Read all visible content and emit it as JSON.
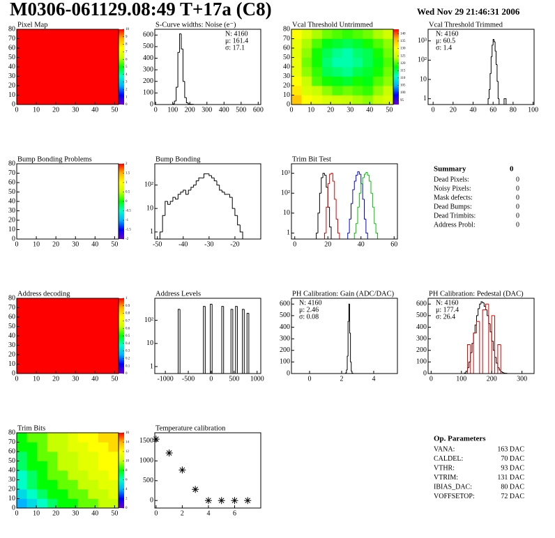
{
  "header": {
    "title": "M0306-061129.08:49 T+17a (C8)",
    "date": "Wed Nov 29 21:46:31 2006"
  },
  "chart_data": [
    {
      "type": "heatmap",
      "title": "Pixel Map",
      "xlim": [
        0,
        52
      ],
      "ylim": [
        0,
        80
      ],
      "xticks": [
        0,
        10,
        20,
        30,
        40,
        50
      ],
      "yticks": [
        0,
        10,
        20,
        30,
        40,
        50,
        60,
        70,
        80
      ],
      "zlim": [
        0,
        10
      ],
      "zticks": [
        0,
        1,
        2,
        3,
        4,
        5,
        6,
        7,
        8,
        9,
        10
      ],
      "colormap": [
        "#6b00c8",
        "#0000ff",
        "#00b4ff",
        "#00ffc8",
        "#00ff00",
        "#c8ff00",
        "#ffff00",
        "#ffb400",
        "#ff0000"
      ],
      "z": [
        [
          10,
          10
        ],
        [
          10,
          10
        ]
      ]
    },
    {
      "type": "hist",
      "title": "S-Curve widths: Noise (e⁻)",
      "xlim": [
        -5,
        615
      ],
      "ylim": [
        0,
        650
      ],
      "xticks": [
        0,
        100,
        200,
        300,
        400,
        500,
        600
      ],
      "yticks": [
        0,
        100,
        200,
        300,
        400,
        500,
        600
      ],
      "stats": [
        "N: 4160",
        "μ: 161.4",
        "σ: 17.1"
      ],
      "stats_corner": "right",
      "series": [
        {
          "color": "#000000",
          "bins": [
            100,
            110,
            120,
            130,
            140,
            150,
            160,
            170,
            180,
            190,
            200,
            210,
            220
          ],
          "values": [
            5,
            30,
            150,
            450,
            610,
            480,
            200,
            60,
            15,
            5,
            3,
            2
          ]
        }
      ]
    },
    {
      "type": "heatmap",
      "title": "Vcal Threshold Untrimmed",
      "xlim": [
        0,
        52
      ],
      "ylim": [
        0,
        80
      ],
      "xticks": [
        0,
        10,
        20,
        30,
        40,
        50
      ],
      "yticks": [
        0,
        10,
        20,
        30,
        40,
        50,
        60,
        70,
        80
      ],
      "zlim": [
        92,
        143
      ],
      "zticks": [
        95,
        100,
        105,
        110,
        115,
        120,
        125,
        130,
        135,
        140
      ],
      "colormap": [
        "#6b00c8",
        "#0000ff",
        "#00b4ff",
        "#00ffc8",
        "#00ff00",
        "#c8ff00",
        "#ffff00",
        "#ffb400",
        "#ff0000"
      ],
      "z": [
        [
          135,
          130,
          128,
          126,
          125,
          124,
          123,
          122,
          124,
          126
        ],
        [
          132,
          126,
          124,
          122,
          120,
          121,
          120,
          119,
          122,
          124
        ],
        [
          130,
          124,
          120,
          118,
          117,
          116,
          118,
          117,
          120,
          122
        ],
        [
          128,
          122,
          119,
          115,
          114,
          113,
          115,
          116,
          118,
          121
        ],
        [
          128,
          121,
          118,
          114,
          112,
          112,
          113,
          115,
          117,
          120
        ],
        [
          127,
          122,
          118,
          115,
          113,
          112,
          114,
          115,
          118,
          121
        ],
        [
          128,
          123,
          120,
          117,
          116,
          115,
          116,
          118,
          120,
          122
        ],
        [
          130,
          126,
          123,
          121,
          120,
          119,
          120,
          121,
          123,
          125
        ]
      ]
    },
    {
      "type": "hist",
      "title": "Vcal Threshold Trimmed",
      "log_y": true,
      "xlim": [
        -5,
        101
      ],
      "ylim": [
        0.5,
        4000
      ],
      "xticks": [
        0,
        20,
        40,
        60,
        80,
        100
      ],
      "yticks": [
        1,
        10,
        {
          "value": 100,
          "label": "10²"
        },
        {
          "value": 1000,
          "label": "10³"
        }
      ],
      "stats": [
        "N: 4160",
        "μ: 60.5",
        "σ:  1.4"
      ],
      "stats_corner": "left",
      "series": [
        {
          "color": "#000000",
          "bins": [
            55,
            56,
            57,
            58,
            59,
            60,
            61,
            62,
            63,
            64,
            65,
            66,
            67,
            68,
            69,
            70,
            71,
            72,
            73
          ],
          "values": [
            1,
            3,
            20,
            150,
            600,
            1200,
            900,
            300,
            60,
            8,
            1,
            0,
            0,
            0,
            0,
            0,
            1,
            1
          ]
        }
      ]
    },
    {
      "type": "heatmap",
      "title": "Bump Bonding Problems",
      "xlim": [
        0,
        52
      ],
      "ylim": [
        0,
        80
      ],
      "xticks": [
        0,
        10,
        20,
        30,
        40,
        50
      ],
      "yticks": [
        0,
        10,
        20,
        30,
        40,
        50,
        60,
        70,
        80
      ],
      "zlim": [
        -2,
        2
      ],
      "zticks": [
        -2,
        -1.5,
        -1,
        -0.5,
        0,
        0.5,
        1,
        1.5,
        2
      ],
      "colormap": [
        "#6b00c8",
        "#0000ff",
        "#00b4ff",
        "#00ffc8",
        "#00ff00",
        "#c8ff00",
        "#ffff00",
        "#ffb400",
        "#ff0000"
      ],
      "z": []
    },
    {
      "type": "hist",
      "title": "Bump Bonding",
      "log_y": true,
      "xlim": [
        -51,
        -10
      ],
      "ylim": [
        0.5,
        800
      ],
      "xticks": [
        -50,
        -40,
        -30,
        -20
      ],
      "yticks": [
        1,
        10,
        {
          "value": 100,
          "label": "10²"
        }
      ],
      "series": [
        {
          "color": "#000000",
          "bins": [
            -49,
            -48,
            -47,
            -46,
            -45,
            -44,
            -43,
            -42,
            -41,
            -40,
            -39,
            -38,
            -37,
            -36,
            -35,
            -34,
            -33,
            -32,
            -31,
            -30,
            -29,
            -28,
            -27,
            -26,
            -25,
            -24,
            -23,
            -22,
            -21,
            -20,
            -19,
            -18,
            -17
          ],
          "values": [
            1,
            5,
            20,
            15,
            20,
            30,
            25,
            40,
            50,
            60,
            40,
            60,
            80,
            100,
            150,
            200,
            200,
            300,
            300,
            250,
            200,
            150,
            100,
            60,
            50,
            40,
            40,
            30,
            10,
            5,
            2,
            1
          ]
        }
      ]
    },
    {
      "type": "hist",
      "title": "Trim Bit Test",
      "log_y": true,
      "xlim": [
        -2,
        62
      ],
      "ylim": [
        0.5,
        3000
      ],
      "xticks": [
        0,
        20,
        40,
        60
      ],
      "yticks": [
        1,
        10,
        {
          "value": 100,
          "label": "10²"
        },
        {
          "value": 1000,
          "label": "10³"
        }
      ],
      "series": [
        {
          "color": "#000000",
          "bins": [
            13,
            14,
            15,
            16,
            17,
            18,
            19,
            20,
            21,
            22
          ],
          "values": [
            1,
            10,
            100,
            600,
            1000,
            800,
            200,
            20,
            2
          ]
        },
        {
          "color": "#e00000",
          "bins": [
            18,
            19,
            20,
            21,
            22,
            23,
            24,
            25,
            26,
            27
          ],
          "values": [
            1,
            20,
            300,
            900,
            1000,
            400,
            50,
            5,
            1
          ]
        },
        {
          "color": "#0000e0",
          "bins": [
            32,
            33,
            34,
            35,
            36,
            37,
            38,
            39,
            40,
            41,
            42,
            43,
            44
          ],
          "values": [
            1,
            5,
            30,
            150,
            400,
            800,
            1200,
            900,
            300,
            50,
            5,
            1
          ]
        },
        {
          "color": "#00c000",
          "bins": [
            36,
            37,
            38,
            39,
            40,
            41,
            42,
            43,
            44,
            45,
            46,
            47,
            48,
            49,
            50
          ],
          "values": [
            1,
            3,
            20,
            100,
            300,
            600,
            900,
            1100,
            800,
            400,
            100,
            20,
            3,
            1
          ]
        }
      ]
    },
    {
      "type": "heatmap",
      "title": "Address decoding",
      "xlim": [
        0,
        52
      ],
      "ylim": [
        0,
        80
      ],
      "xticks": [
        0,
        10,
        20,
        30,
        40,
        50
      ],
      "yticks": [
        0,
        10,
        20,
        30,
        40,
        50,
        60,
        70,
        80
      ],
      "zlim": [
        0,
        1
      ],
      "zticks": [
        0,
        0.1,
        0.2,
        0.3,
        0.4,
        0.5,
        0.6,
        0.7,
        0.8,
        0.9,
        1
      ],
      "colormap": [
        "#6b00c8",
        "#0000ff",
        "#00b4ff",
        "#00ffc8",
        "#00ff00",
        "#c8ff00",
        "#ffff00",
        "#ffb400",
        "#ff0000"
      ],
      "z": [
        [
          1,
          1
        ],
        [
          1,
          1
        ]
      ]
    },
    {
      "type": "hist",
      "title": "Address Levels",
      "log_y": true,
      "xlim": [
        -1230,
        1080
      ],
      "ylim": [
        0.5,
        900
      ],
      "xticks": [
        -1000,
        -500,
        0,
        500,
        1000
      ],
      "yticks": [
        1,
        10,
        {
          "value": 100,
          "label": "10²"
        }
      ],
      "series": [
        {
          "color": "#000000",
          "bins": [
            -720,
            -680,
            -170,
            -130,
            -20,
            20,
            230,
            270,
            430,
            470,
            530,
            570,
            680,
            720,
            780,
            820
          ],
          "values": [
            300,
            0,
            400,
            0,
            500,
            0,
            400,
            0,
            300,
            0,
            400,
            0,
            300,
            0,
            200
          ]
        }
      ]
    },
    {
      "type": "hist",
      "title": "PH Calibration: Gain (ADC/DAC)",
      "xlim": [
        -1.13,
        5.48
      ],
      "ylim": [
        0,
        650
      ],
      "xticks": [
        0,
        2,
        4
      ],
      "yticks": [
        0,
        100,
        200,
        300,
        400,
        500,
        600
      ],
      "stats": [
        "N: 4160",
        "μ: 2.46",
        "σ: 0.08"
      ],
      "stats_corner": "left",
      "series": [
        {
          "color": "#000000",
          "bins": [
            2.25,
            2.3,
            2.35,
            2.4,
            2.45,
            2.5,
            2.55,
            2.6,
            2.65,
            2.7
          ],
          "values": [
            5,
            30,
            150,
            450,
            600,
            350,
            100,
            20,
            3
          ]
        }
      ]
    },
    {
      "type": "hist",
      "title": "PH Calibration: Pedestal (DAC)",
      "xlim": [
        -10,
        340
      ],
      "ylim": [
        0,
        650
      ],
      "xticks": [
        0,
        100,
        200,
        300
      ],
      "yticks": [
        0,
        100,
        200,
        300,
        400,
        500,
        600
      ],
      "stats": [
        "N: 4160",
        "μ: 177.4",
        "σ: 26.4"
      ],
      "stats_colors": [
        "#000000",
        "#e00000",
        "#e00000"
      ],
      "stats_corner": "left",
      "series": [
        {
          "color": "#000000",
          "bins": [
            110,
            115,
            120,
            125,
            130,
            135,
            140,
            145,
            150,
            155,
            160,
            165,
            170,
            175,
            180,
            185,
            190,
            195,
            200,
            205,
            210,
            215,
            220,
            225,
            230,
            235,
            240,
            245,
            250
          ],
          "values": [
            5,
            20,
            50,
            100,
            180,
            260,
            350,
            420,
            500,
            560,
            600,
            620,
            610,
            580,
            550,
            500,
            430,
            360,
            280,
            200,
            140,
            90,
            50,
            30,
            15,
            8,
            4,
            2
          ]
        },
        {
          "color": "#e00000",
          "bins": [
            110,
            120,
            130,
            140,
            150,
            160,
            170,
            180,
            190,
            200,
            210,
            220,
            230,
            240
          ],
          "values": [
            0,
            250,
            0,
            350,
            450,
            0,
            550,
            600,
            0,
            500,
            0,
            250,
            0
          ]
        }
      ]
    },
    {
      "type": "heatmap",
      "title": "Trim Bits",
      "xlim": [
        0,
        52
      ],
      "ylim": [
        0,
        80
      ],
      "xticks": [
        0,
        10,
        20,
        30,
        40,
        50
      ],
      "yticks": [
        0,
        10,
        20,
        30,
        40,
        50,
        60,
        70,
        80
      ],
      "zlim": [
        0,
        16
      ],
      "zticks": [
        0,
        2,
        4,
        6,
        8,
        10,
        12,
        14,
        16
      ],
      "colormap": [
        "#6b00c8",
        "#0000ff",
        "#00b4ff",
        "#00ffc8",
        "#00ff00",
        "#c8ff00",
        "#ffff00",
        "#ffb400",
        "#ff0000"
      ],
      "z": [
        [
          4,
          5,
          6,
          7,
          8,
          8,
          9,
          9,
          10,
          10
        ],
        [
          5,
          6,
          7,
          8,
          8,
          9,
          9,
          10,
          10,
          11
        ],
        [
          6,
          7,
          8,
          8,
          9,
          9,
          10,
          10,
          11,
          11
        ],
        [
          6,
          7,
          8,
          9,
          9,
          10,
          10,
          11,
          11,
          12
        ],
        [
          7,
          8,
          8,
          9,
          10,
          10,
          11,
          11,
          12,
          12
        ],
        [
          7,
          8,
          9,
          9,
          10,
          10,
          11,
          11,
          12,
          12
        ],
        [
          8,
          8,
          9,
          10,
          10,
          11,
          11,
          12,
          12,
          13
        ],
        [
          8,
          9,
          9,
          10,
          10,
          11,
          12,
          12,
          13,
          13
        ]
      ]
    },
    {
      "type": "scatter",
      "title": "Temperature calibration",
      "xlim": [
        -0.1,
        8.0
      ],
      "ylim": [
        -190,
        1710
      ],
      "xticks": [
        0,
        2,
        4,
        6
      ],
      "yticks": [
        0,
        500,
        1000,
        1500
      ],
      "x": [
        0,
        1,
        2,
        3,
        4,
        5,
        6,
        7
      ],
      "values": [
        1550,
        1200,
        770,
        280,
        0,
        0,
        0,
        0
      ]
    }
  ],
  "summary": {
    "title": "Summary",
    "total": 0,
    "rows": [
      {
        "label": "Dead Pixels:",
        "value": 0
      },
      {
        "label": "Noisy Pixels:",
        "value": 0
      },
      {
        "label": "Mask defects:",
        "value": 0
      },
      {
        "label": "Dead Bumps:",
        "value": 0
      },
      {
        "label": "Dead Trimbits:",
        "value": 0
      },
      {
        "label": "Address Probl:",
        "value": 0
      }
    ]
  },
  "parameters": {
    "title": "Op. Parameters",
    "rows": [
      {
        "label": "VANA:",
        "value": "163 DAC"
      },
      {
        "label": "CALDEL:",
        "value": "70 DAC"
      },
      {
        "label": "VTHR:",
        "value": "93 DAC"
      },
      {
        "label": "VTRIM:",
        "value": "131 DAC"
      },
      {
        "label": "IBIAS_DAC:",
        "value": "80 DAC"
      },
      {
        "label": "VOFFSETOP:",
        "value": "72 DAC"
      }
    ]
  }
}
